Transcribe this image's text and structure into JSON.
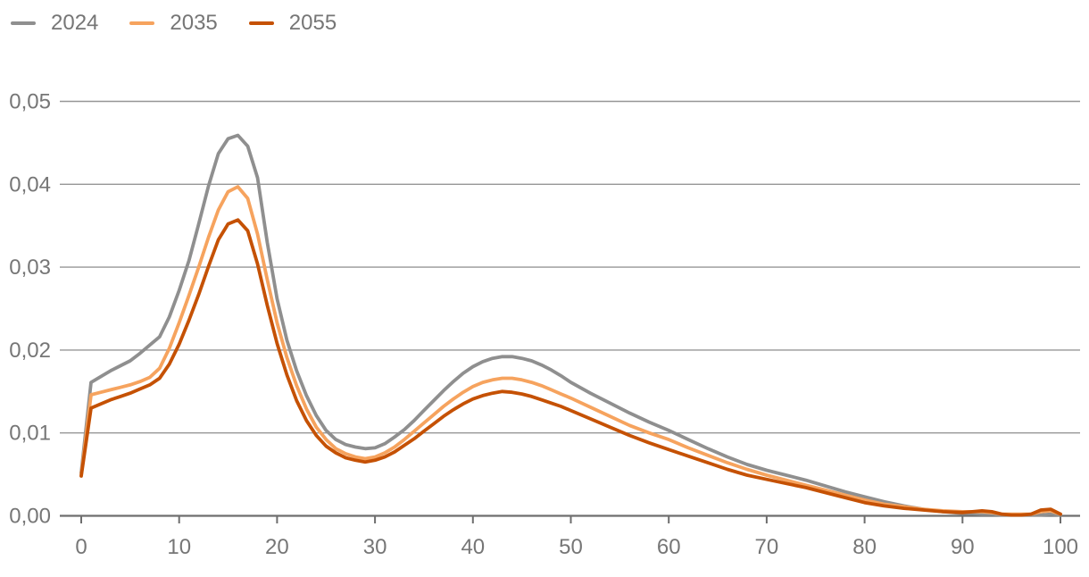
{
  "chart_data": {
    "type": "line",
    "xlim": [
      0,
      100
    ],
    "ylim": [
      0,
      0.05
    ],
    "grid": "horizontal",
    "legend_position": "top-left",
    "title": "",
    "xlabel": "",
    "ylabel": "",
    "decimal_separator": ",",
    "x_tick_values": [
      0,
      10,
      20,
      30,
      40,
      50,
      60,
      70,
      80,
      90,
      100
    ],
    "x_tick_labels": [
      "0",
      "10",
      "20",
      "30",
      "40",
      "50",
      "60",
      "70",
      "80",
      "90",
      "100"
    ],
    "y_tick_values": [
      0,
      0.01,
      0.02,
      0.03,
      0.04,
      0.05
    ],
    "y_tick_labels": [
      "0,00",
      "0,01",
      "0,02",
      "0,03",
      "0,04",
      "0,05"
    ],
    "x": [
      0,
      1,
      2,
      3,
      4,
      5,
      6,
      7,
      8,
      9,
      10,
      11,
      12,
      13,
      14,
      15,
      16,
      17,
      18,
      19,
      20,
      21,
      22,
      23,
      24,
      25,
      26,
      27,
      28,
      29,
      30,
      31,
      32,
      33,
      34,
      35,
      36,
      37,
      38,
      39,
      40,
      41,
      42,
      43,
      44,
      45,
      46,
      47,
      48,
      49,
      50,
      52,
      54,
      56,
      58,
      60,
      62,
      64,
      66,
      68,
      70,
      72,
      74,
      76,
      78,
      80,
      82,
      84,
      86,
      88,
      90,
      91,
      92,
      93,
      94,
      95,
      96,
      97,
      98,
      99,
      100
    ],
    "series": [
      {
        "name": "2024",
        "color": "#8f8f8f",
        "values": [
          0.0052,
          0.0161,
          0.0168,
          0.0175,
          0.0181,
          0.0187,
          0.0196,
          0.0206,
          0.0216,
          0.024,
          0.0272,
          0.0308,
          0.0352,
          0.0398,
          0.0437,
          0.0455,
          0.0459,
          0.0446,
          0.0408,
          0.033,
          0.0262,
          0.0212,
          0.0175,
          0.0145,
          0.0121,
          0.0103,
          0.0092,
          0.0086,
          0.0083,
          0.0081,
          0.0082,
          0.0087,
          0.0095,
          0.0104,
          0.0115,
          0.0127,
          0.0139,
          0.0151,
          0.0162,
          0.0172,
          0.018,
          0.0186,
          0.019,
          0.0192,
          0.0192,
          0.019,
          0.0187,
          0.0182,
          0.0176,
          0.0169,
          0.0161,
          0.0148,
          0.0136,
          0.0124,
          0.0113,
          0.0103,
          0.0092,
          0.0081,
          0.0071,
          0.0062,
          0.0055,
          0.0049,
          0.0043,
          0.0036,
          0.0029,
          0.0023,
          0.0017,
          0.0012,
          0.0008,
          0.0005,
          0.0003,
          0.0003,
          0.0002,
          0.0002,
          0.0001,
          0.0001,
          0.0001,
          0.0001,
          0.0001,
          0.0002,
          0.0001
        ]
      },
      {
        "name": "2035",
        "color": "#f6a35e",
        "values": [
          0.0049,
          0.0146,
          0.0149,
          0.0152,
          0.0155,
          0.0158,
          0.0162,
          0.0167,
          0.0178,
          0.0202,
          0.0233,
          0.0266,
          0.03,
          0.0336,
          0.0369,
          0.0391,
          0.0397,
          0.0383,
          0.034,
          0.0285,
          0.0233,
          0.0191,
          0.0157,
          0.0129,
          0.0107,
          0.0092,
          0.0081,
          0.0075,
          0.0071,
          0.0069,
          0.0071,
          0.0076,
          0.0083,
          0.0092,
          0.0102,
          0.0112,
          0.0122,
          0.0132,
          0.0141,
          0.0149,
          0.0156,
          0.0161,
          0.0164,
          0.0166,
          0.0166,
          0.0164,
          0.0161,
          0.0157,
          0.0152,
          0.0147,
          0.0142,
          0.0131,
          0.012,
          0.0109,
          0.01,
          0.0092,
          0.0082,
          0.0073,
          0.0064,
          0.0056,
          0.0049,
          0.0043,
          0.0037,
          0.0031,
          0.0025,
          0.0019,
          0.0014,
          0.0011,
          0.0008,
          0.0006,
          0.0005,
          0.0005,
          0.0005,
          0.0004,
          0.0002,
          0.0002,
          0.0002,
          0.0002,
          0.0005,
          0.0006,
          0.0002
        ]
      },
      {
        "name": "2055",
        "color": "#c55104",
        "values": [
          0.0048,
          0.013,
          0.0135,
          0.014,
          0.0144,
          0.0148,
          0.0153,
          0.0158,
          0.0166,
          0.0183,
          0.0207,
          0.0236,
          0.0267,
          0.0301,
          0.0333,
          0.0352,
          0.0357,
          0.0344,
          0.0304,
          0.0254,
          0.0208,
          0.017,
          0.0139,
          0.0115,
          0.0097,
          0.0084,
          0.0076,
          0.007,
          0.0067,
          0.0065,
          0.0067,
          0.0071,
          0.0077,
          0.0085,
          0.0093,
          0.0102,
          0.0111,
          0.012,
          0.0128,
          0.0135,
          0.0141,
          0.0145,
          0.0148,
          0.015,
          0.0149,
          0.0147,
          0.0144,
          0.014,
          0.0136,
          0.0132,
          0.0127,
          0.0117,
          0.0107,
          0.0097,
          0.0088,
          0.008,
          0.0072,
          0.0064,
          0.0056,
          0.0049,
          0.0044,
          0.0039,
          0.0034,
          0.0028,
          0.0022,
          0.0016,
          0.0012,
          0.0009,
          0.0007,
          0.0005,
          0.0004,
          0.0005,
          0.0006,
          0.0005,
          0.0002,
          0.0001,
          0.0001,
          0.0002,
          0.0007,
          0.0008,
          0.0002
        ]
      }
    ],
    "style": {
      "gridline_color": "#969696",
      "axis_color": "#6e6e6e",
      "tick_label_color": "#767676",
      "line_width": 3.8
    }
  }
}
